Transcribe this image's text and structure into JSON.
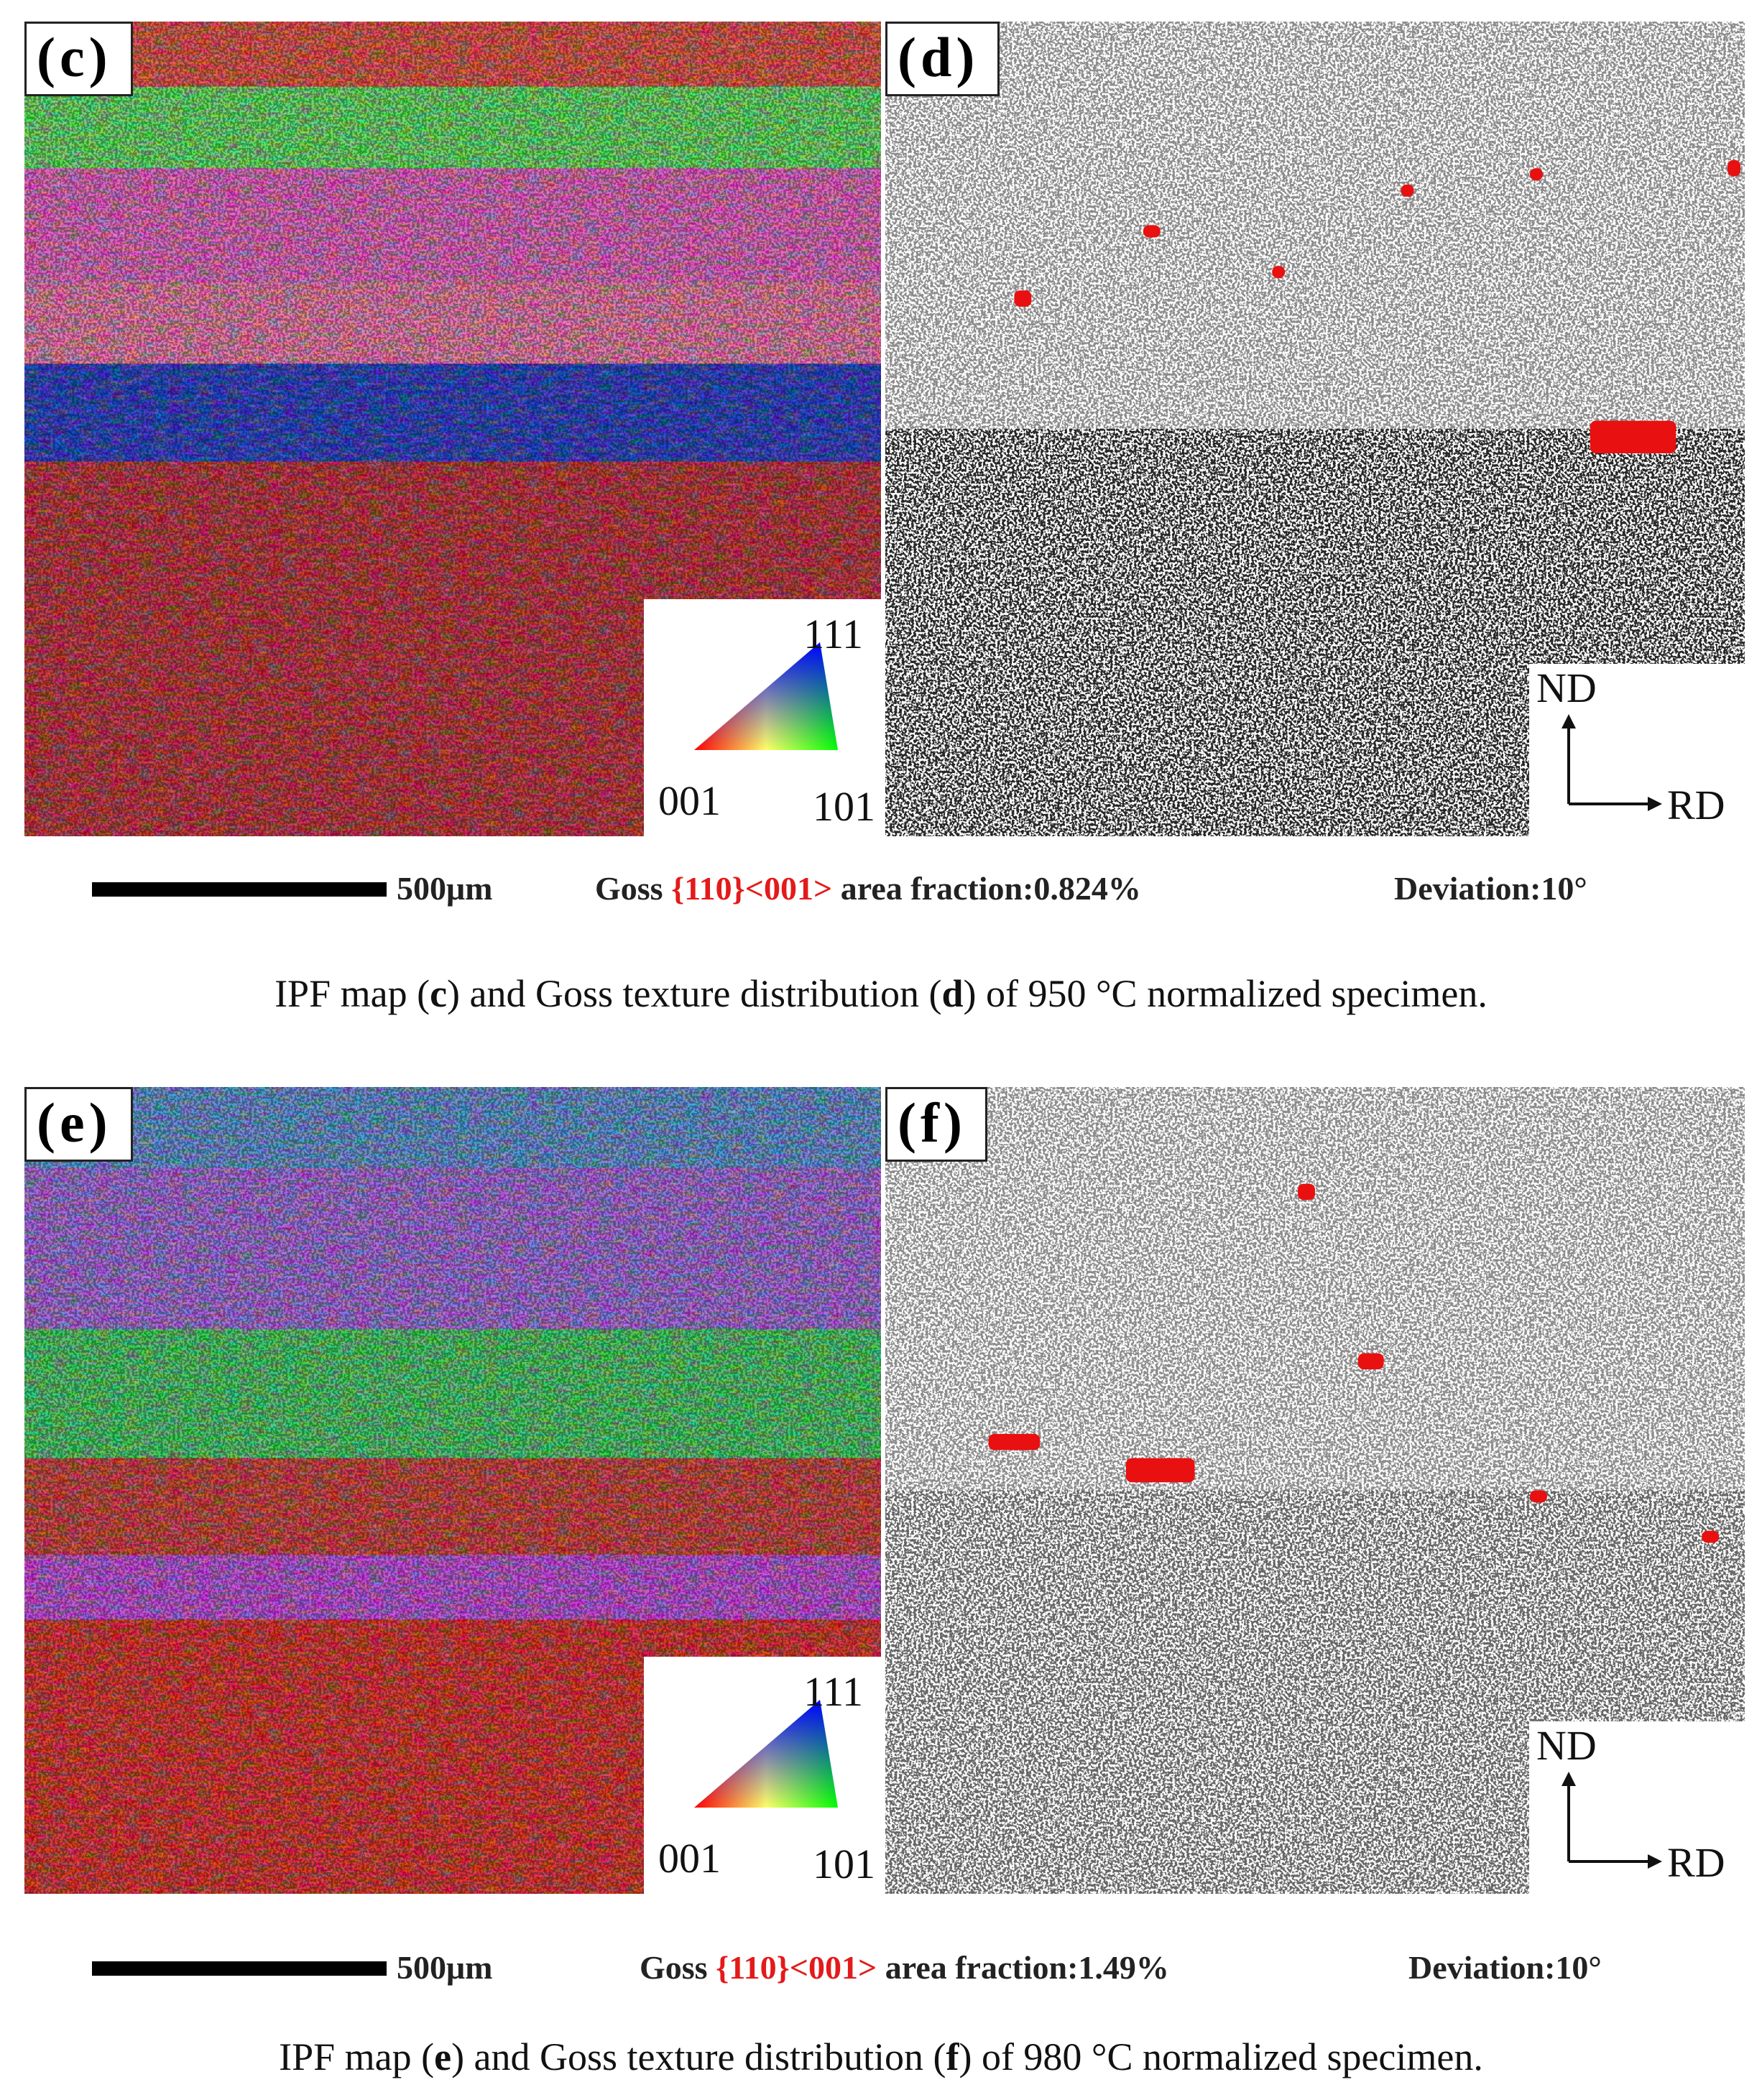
{
  "figures": [
    {
      "panels": [
        {
          "label": "(c)",
          "legend": {
            "top": "111",
            "left": "001",
            "right": "101"
          }
        },
        {
          "label": "(d)",
          "axes": {
            "y": "ND",
            "x": "RD"
          }
        }
      ],
      "scale_bar": "500μm",
      "goss": {
        "prefix": "Goss",
        "orientation": "{110}<001>",
        "suffix": "area fraction:0.824%"
      },
      "deviation": "Deviation:10°",
      "caption": [
        "IPF map (",
        "c",
        ") and Goss texture distribution (",
        "d",
        ") of 950 °C normalized specimen."
      ]
    },
    {
      "panels": [
        {
          "label": "(e)",
          "legend": {
            "top": "111",
            "left": "001",
            "right": "101"
          }
        },
        {
          "label": "(f)",
          "axes": {
            "y": "ND",
            "x": "RD"
          }
        }
      ],
      "scale_bar": "500μm",
      "goss": {
        "prefix": "Goss",
        "orientation": "{110}<001>",
        "suffix": "area fraction:1.49%"
      },
      "deviation": "Deviation:10°",
      "caption": [
        "IPF map (",
        "e",
        ") and Goss texture distribution (",
        "f",
        ") of 980 °C normalized specimen."
      ]
    }
  ]
}
